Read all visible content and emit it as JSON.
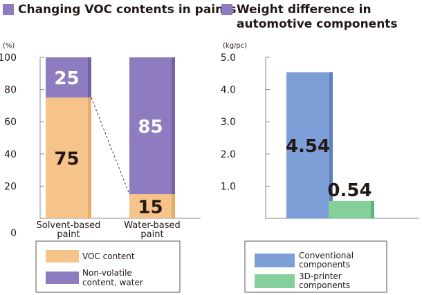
{
  "colors": {
    "voc": "#f6c48a",
    "voc_side": "#e6ad6a",
    "nonvolatile": "#8f7cc0",
    "nonvolatile_side": "#7561a8",
    "conventional": "#7b9fd6",
    "conventional_side": "#5d7fbf",
    "printer3d": "#84cf9a",
    "printer3d_side": "#5fb37a",
    "title_square": "#8f7cc0",
    "axis": "#888888",
    "text": "#231815"
  },
  "chart_data": [
    {
      "type": "bar",
      "stacked": true,
      "title": "Changing VOC contents in paints",
      "ylabel": "(%)",
      "ylim": [
        0,
        100
      ],
      "yticks": [
        "0",
        "20",
        "40",
        "60",
        "80",
        "100"
      ],
      "categories": [
        "Solvent-based\npaint",
        "Water-based\npaint"
      ],
      "series": [
        {
          "name": "VOC content",
          "values": [
            75,
            15
          ],
          "labels": [
            "75",
            "15"
          ],
          "label_color": "#231815"
        },
        {
          "name": "Non-volatile\ncontent, water",
          "values": [
            25,
            85
          ],
          "labels": [
            "25",
            "85"
          ],
          "label_color": "#ffffff"
        }
      ],
      "grid": false,
      "legend_position": "bottom"
    },
    {
      "type": "bar",
      "title": "Weight difference in\nautomotive components",
      "ylabel": "(kg/pc)",
      "ylim": [
        0,
        5
      ],
      "yticks": [
        "1.0",
        "2.0",
        "3.0",
        "4.0",
        "5.0"
      ],
      "series": [
        {
          "name": "Conventional\ncomponents",
          "values": [
            4.54
          ],
          "labels": [
            "4.54"
          ]
        },
        {
          "name": "3D-printer\ncomponents",
          "values": [
            0.54
          ],
          "labels": [
            "0.54"
          ]
        }
      ],
      "grid": false,
      "legend_position": "bottom"
    }
  ]
}
